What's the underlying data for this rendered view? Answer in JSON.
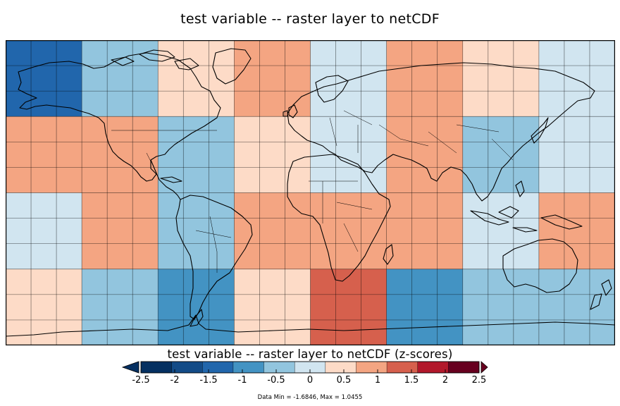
{
  "title": "test variable -- raster layer to netCDF",
  "colorbar": {
    "title": "test variable -- raster layer to netCDF (z-scores)",
    "ticks": [
      "-2.5",
      "-2",
      "-1.5",
      "-1",
      "-0.5",
      "0",
      "0.5",
      "1",
      "1.5",
      "2",
      "2.5"
    ],
    "colors": [
      "#053061",
      "#134b87",
      "#2166ac",
      "#4393c3",
      "#92c5de",
      "#d1e5f0",
      "#fddbc7",
      "#f4a582",
      "#d6604d",
      "#b2182b",
      "#67001f"
    ],
    "under_color": "#053061",
    "over_color": "#67001f"
  },
  "range_note": "Data Min = -1.6846, Max = 1.0455",
  "chart_data": {
    "type": "heatmap",
    "projection": "equirectangular",
    "lon_range": [
      -180,
      180
    ],
    "lat_range": [
      -90,
      90
    ],
    "grid_lines": "15 deg",
    "coarse_cell_deg": 45,
    "lon_edges": [
      -180,
      -135,
      -90,
      -45,
      0,
      45,
      90,
      135,
      180
    ],
    "lat_edges": [
      90,
      45,
      0,
      -45,
      -90
    ],
    "values": [
      [
        "#2166ac",
        "#92c5de",
        "#fddbc7",
        "#f4a582",
        "#d1e5f0",
        "#f4a582",
        "#fddbc7",
        "#d1e5f0"
      ],
      [
        "#f4a582",
        "#f4a582",
        "#92c5de",
        "#fddbc7",
        "#d1e5f0",
        "#f4a582",
        "#92c5de",
        "#d1e5f0"
      ],
      [
        "#d1e5f0",
        "#f4a582",
        "#92c5de",
        "#f4a582",
        "#f4a582",
        "#f4a582",
        "#d1e5f0",
        "#f4a582"
      ],
      [
        "#fddbc7",
        "#92c5de",
        "#4393c3",
        "#fddbc7",
        "#d6604d",
        "#4393c3",
        "#92c5de",
        "#92c5de"
      ]
    ],
    "data_min": -1.6846,
    "data_max": 1.0455
  }
}
